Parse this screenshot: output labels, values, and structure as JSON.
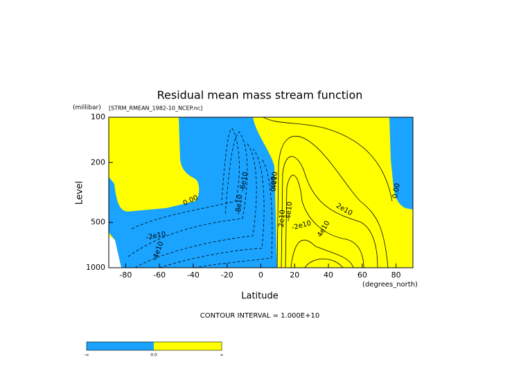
{
  "chart_data": {
    "type": "contour",
    "title": "Residual mean mass stream function",
    "subtitle": "[STRM_RMEAN_1982-10_NCEP.nc]",
    "y_unit": "(millibar)",
    "ylabel": "Level",
    "xlabel": "Latitude",
    "x_unit": "(degrees_north)",
    "note": "CONTOUR INTERVAL = 1.000E+10",
    "xlim": [
      -90,
      90
    ],
    "xticks": [
      -80,
      -60,
      -40,
      -20,
      0,
      20,
      40,
      60,
      80
    ],
    "ylim": [
      1000,
      100
    ],
    "yticks": [
      100,
      200,
      500,
      1000
    ],
    "ylog": true,
    "colors": [
      "#1aa3ff",
      "#ffff00"
    ],
    "colorbar_labels": [
      "-∞",
      "0.0",
      "∞"
    ],
    "annotations": [
      "0.00",
      "-2e10",
      "-4e10",
      "-6e10",
      "-8e10",
      "-2e10",
      "-4e10",
      "2e10",
      "4e10",
      "2e10",
      "4e10",
      "0.00",
      "0.00"
    ]
  }
}
